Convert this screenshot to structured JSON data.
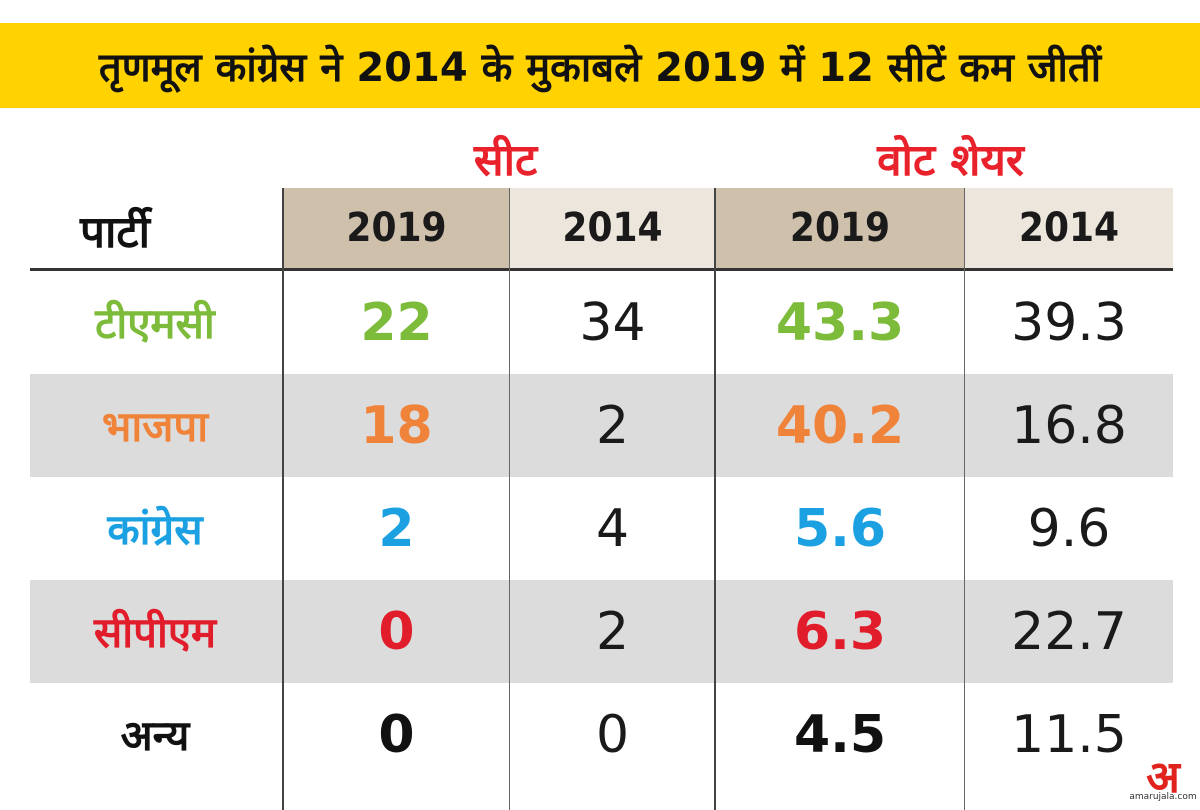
{
  "title": "तृणमूल कांग्रेस ने 2014 के मुकाबले 2019 में 12 सीटें कम जीतीं",
  "chart_data": {
    "type": "table",
    "title": "तृणमूल कांग्रेस ने 2014 के मुकाबले 2019 में 12 सीटें कम जीतीं",
    "groups": [
      {
        "label": "सीट",
        "color": "#e8212b"
      },
      {
        "label": "वोट शेयर",
        "color": "#e8212b"
      }
    ],
    "row_header": "पार्टी",
    "columns": [
      "2019",
      "2014",
      "2019",
      "2014"
    ],
    "rows": [
      {
        "party": "टीएमसी",
        "color": "#7dbb3a",
        "seats_2019": "22",
        "seats_2014": "34",
        "vote_2019": "43.3",
        "vote_2014": "39.3"
      },
      {
        "party": "भाजपा",
        "color": "#f0833a",
        "seats_2019": "18",
        "seats_2014": "2",
        "vote_2019": "40.2",
        "vote_2014": "16.8"
      },
      {
        "party": "कांग्रेस",
        "color": "#1ba0e2",
        "seats_2019": "2",
        "seats_2014": "4",
        "vote_2019": "5.6",
        "vote_2014": "9.6"
      },
      {
        "party": "सीपीएम",
        "color": "#e21d2b",
        "seats_2019": "0",
        "seats_2014": "2",
        "vote_2019": "6.3",
        "vote_2014": "22.7"
      },
      {
        "party": "अन्य",
        "color": "#111111",
        "seats_2019": "0",
        "seats_2014": "0",
        "vote_2019": "4.5",
        "vote_2014": "11.5"
      }
    ]
  },
  "logo": {
    "glyph": "अ",
    "site": "amarujala.com",
    "color": "#e0231c"
  }
}
